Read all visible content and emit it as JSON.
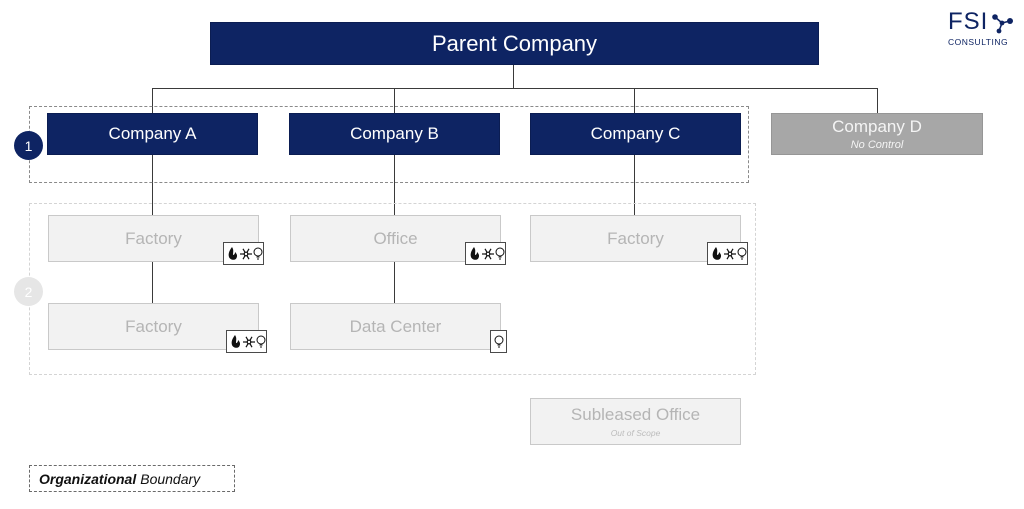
{
  "logo": {
    "main": "FSI",
    "sub": "CONSULTING"
  },
  "parent": {
    "label": "Parent Company"
  },
  "subsidiaries": [
    {
      "label": "Company A",
      "note": ""
    },
    {
      "label": "Company B",
      "note": ""
    },
    {
      "label": "Company C",
      "note": ""
    },
    {
      "label": "Company D",
      "note": "No Control"
    }
  ],
  "badges": {
    "level1": "1",
    "level2": "2"
  },
  "facilities": [
    {
      "label": "Factory",
      "scopes": [
        "fire",
        "snowflake",
        "bulb"
      ]
    },
    {
      "label": "Office",
      "scopes": [
        "fire",
        "snowflake",
        "bulb"
      ]
    },
    {
      "label": "Factory",
      "scopes": [
        "fire",
        "snowflake",
        "bulb"
      ]
    },
    {
      "label": "Factory",
      "scopes": [
        "fire",
        "snowflake",
        "bulb"
      ]
    },
    {
      "label": "Data Center",
      "scopes": [
        "bulb"
      ]
    }
  ],
  "subleased": {
    "label": "Subleased Office",
    "note": "Out of Scope"
  },
  "legend": {
    "bold": "Organizational",
    "rest": "Boundary"
  },
  "colors": {
    "navy": "#0e2463",
    "gray": "#a7a7a7",
    "faded": "#f2f2f2"
  }
}
